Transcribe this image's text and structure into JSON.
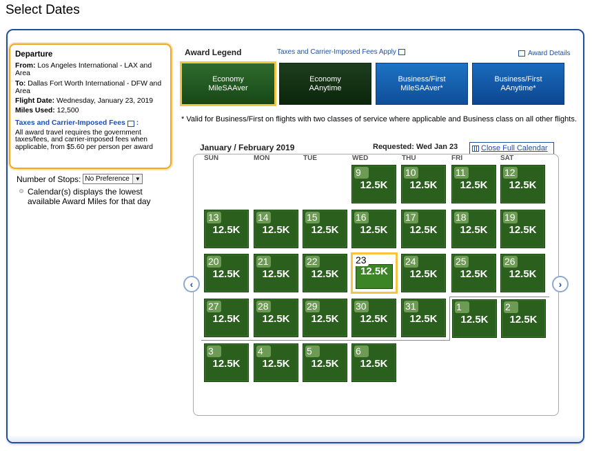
{
  "page_title": "Select Dates",
  "departure": {
    "heading": "Departure",
    "from_label": "From:",
    "from_value": "Los Angeles International - LAX and Area",
    "to_label": "To:",
    "to_value": "Dallas Fort Worth International - DFW and Area",
    "date_label": "Flight Date:",
    "date_value": "Wednesday, January 23, 2019",
    "miles_label": "Miles Used:",
    "miles_value": "12,500",
    "tax_link": "Taxes and Carrier-Imposed Fees",
    "tax_colon": ":",
    "tax_note": "All award travel requires the government taxes/fees, and carrier-imposed fees when applicable, from $5.60 per person per award"
  },
  "stops": {
    "label": "Number of Stops:",
    "selected": "No Preference"
  },
  "calendar_note": "Calendar(s) displays the lowest available Award Miles for that day",
  "legend": {
    "title": "Award Legend",
    "taxes_link": "Taxes and Carrier-Imposed Fees Apply",
    "award_details": "Award Details",
    "tiles": [
      {
        "line1": "Economy",
        "line2": "MileSAAver"
      },
      {
        "line1": "Economy",
        "line2": "AAnytime"
      },
      {
        "line1": "Business/First",
        "line2": "MileSAAver*"
      },
      {
        "line1": "Business/First",
        "line2": "AAnytime*"
      }
    ],
    "valid_note": "* Valid for Business/First on flights with two classes of service where applicable and Business class on all other flights."
  },
  "calendar": {
    "month": "January / February 2019",
    "requested": "Requested: Wed Jan 23",
    "close_link": "Close Full Calendar",
    "weekdays": [
      "SUN",
      "MON",
      "TUE",
      "WED",
      "THU",
      "FRI",
      "SAT"
    ],
    "days": [
      {
        "num": "9",
        "miles": "12.5K"
      },
      {
        "num": "10",
        "miles": "12.5K"
      },
      {
        "num": "11",
        "miles": "12.5K"
      },
      {
        "num": "12",
        "miles": "12.5K"
      },
      {
        "num": "13",
        "miles": "12.5K"
      },
      {
        "num": "14",
        "miles": "12.5K"
      },
      {
        "num": "15",
        "miles": "12.5K"
      },
      {
        "num": "16",
        "miles": "12.5K"
      },
      {
        "num": "17",
        "miles": "12.5K"
      },
      {
        "num": "18",
        "miles": "12.5K"
      },
      {
        "num": "19",
        "miles": "12.5K"
      },
      {
        "num": "20",
        "miles": "12.5K"
      },
      {
        "num": "21",
        "miles": "12.5K"
      },
      {
        "num": "22",
        "miles": "12.5K"
      },
      {
        "num": "23",
        "miles": "12.5K"
      },
      {
        "num": "24",
        "miles": "12.5K"
      },
      {
        "num": "25",
        "miles": "12.5K"
      },
      {
        "num": "26",
        "miles": "12.5K"
      },
      {
        "num": "27",
        "miles": "12.5K"
      },
      {
        "num": "28",
        "miles": "12.5K"
      },
      {
        "num": "29",
        "miles": "12.5K"
      },
      {
        "num": "30",
        "miles": "12.5K"
      },
      {
        "num": "31",
        "miles": "12.5K"
      },
      {
        "num": "1",
        "miles": "12.5K"
      },
      {
        "num": "2",
        "miles": "12.5K"
      },
      {
        "num": "3",
        "miles": "12.5K"
      },
      {
        "num": "4",
        "miles": "12.5K"
      },
      {
        "num": "5",
        "miles": "12.5K"
      },
      {
        "num": "6",
        "miles": "12.5K"
      }
    ]
  },
  "nav": {
    "prev": "‹",
    "next": "›"
  }
}
